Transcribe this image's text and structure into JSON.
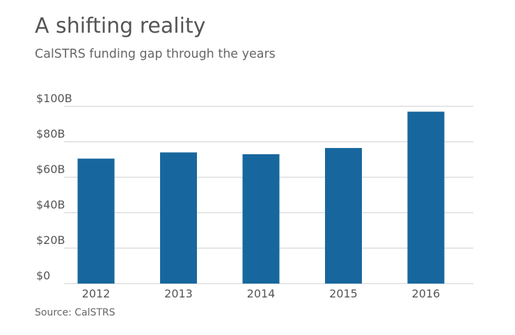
{
  "chart_data": {
    "type": "bar",
    "title": "A shifting reality",
    "subtitle": "CalSTRS funding gap through the years",
    "source": "Source: CalSTRS",
    "categories": [
      "2012",
      "2013",
      "2014",
      "2015",
      "2016"
    ],
    "values": [
      70.5,
      74,
      73,
      76.5,
      97
    ],
    "ylim": [
      0,
      100
    ],
    "yticks": [
      0,
      20,
      40,
      60,
      80,
      100
    ],
    "ytick_labels": [
      "$0",
      "$20B",
      "$40B",
      "$60B",
      "$80B",
      "$100B"
    ],
    "xlabel": "",
    "ylabel": "",
    "grid": true,
    "bar_color": "#17679e",
    "grid_color": "#cccccc"
  }
}
